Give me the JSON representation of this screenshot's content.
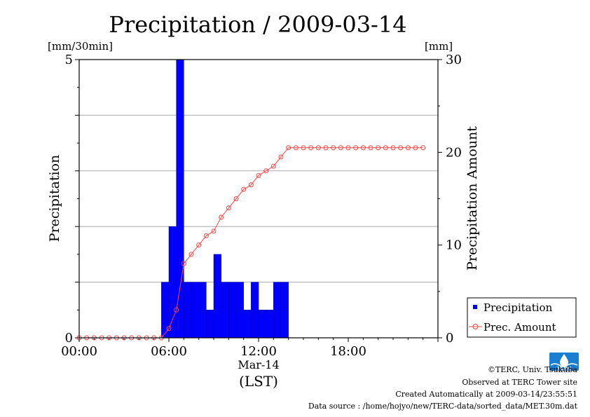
{
  "chart_data": {
    "type": "bar",
    "title": "Precipitation / 2009-03-14",
    "ylabel_left": "Precipitation",
    "ylabel_right": "Precipitation Amount",
    "unit_left": "[mm/30min]",
    "unit_right": "[mm]",
    "xlabel_date": "Mar-14",
    "xlabel": "(LST)",
    "x_ticks": [
      {
        "hour": 0,
        "label": "00:00"
      },
      {
        "hour": 6,
        "label": "06:00"
      },
      {
        "hour": 12,
        "label": "12:00"
      },
      {
        "hour": 18,
        "label": "18:00"
      }
    ],
    "xlim_hours": [
      0,
      24
    ],
    "ylim_left": [
      0,
      5
    ],
    "ylim_right": [
      0,
      30
    ],
    "yticks_left": [
      "0",
      "5"
    ],
    "yticks_right": [
      "0",
      "10",
      "20",
      "30"
    ],
    "grid_y_left": [
      1,
      2,
      3,
      4
    ],
    "legend_position": "bottom-right, outside plot",
    "series": [
      {
        "name": "Precipitation",
        "kind": "bar",
        "axis": "left",
        "color": "#0000ff",
        "start_hours": [
          5.5,
          6.0,
          6.5,
          7.0,
          7.5,
          8.0,
          8.5,
          9.0,
          9.5,
          10.0,
          10.5,
          11.0,
          11.5,
          12.0,
          12.5,
          13.0,
          13.5
        ],
        "values": [
          1.0,
          2.0,
          5.0,
          1.0,
          1.0,
          1.0,
          0.5,
          1.5,
          1.0,
          1.0,
          1.0,
          0.5,
          1.0,
          0.5,
          0.5,
          1.0,
          1.0
        ]
      },
      {
        "name": "Prec. Amount",
        "kind": "line",
        "axis": "right",
        "color": "#ff4444",
        "hours": [
          0,
          0.5,
          1,
          1.5,
          2,
          2.5,
          3,
          3.5,
          4,
          4.5,
          5,
          5.5,
          6,
          6.5,
          7,
          7.5,
          8,
          8.5,
          9,
          9.5,
          10,
          10.5,
          11,
          11.5,
          12,
          12.5,
          13,
          13.5,
          14,
          14.5,
          15,
          15.5,
          16,
          16.5,
          17,
          17.5,
          18,
          18.5,
          19,
          19.5,
          20,
          20.5,
          21,
          21.5,
          22,
          22.5,
          23
        ],
        "values": [
          0,
          0,
          0,
          0,
          0,
          0,
          0,
          0,
          0,
          0,
          0,
          0,
          1,
          3,
          8,
          9,
          10,
          11,
          11.5,
          13,
          14,
          15,
          16,
          16.5,
          17.5,
          18,
          18.5,
          19.5,
          20.5,
          20.5,
          20.5,
          20.5,
          20.5,
          20.5,
          20.5,
          20.5,
          20.5,
          20.5,
          20.5,
          20.5,
          20.5,
          20.5,
          20.5,
          20.5,
          20.5,
          20.5,
          20.5
        ]
      }
    ]
  },
  "footer": {
    "credit": "©TERC, Univ. Tsukuba",
    "observed": "Observed at TERC Tower site",
    "created": "Created Automatically at 2009-03-14/23:55:51",
    "source": "Data source : /home/hojyo/new/TERC-data/sorted_data/MET.30m.dat"
  },
  "logo": {
    "text": "TERC",
    "color": "#1a7fd0"
  }
}
